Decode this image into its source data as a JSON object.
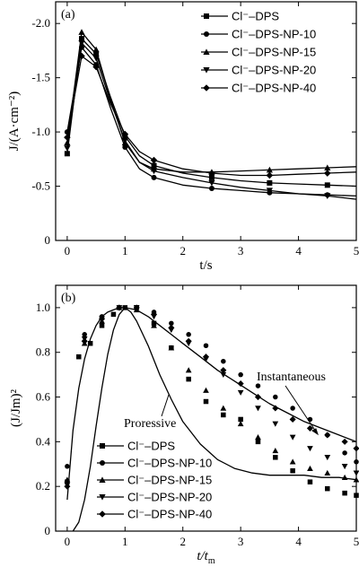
{
  "chart_data": [
    {
      "type": "line",
      "panel_label": "(a)",
      "xlabel": "t/s",
      "ylabel": "J/(A·cm⁻²)",
      "xlim": [
        -0.2,
        5
      ],
      "ylim": [
        0,
        -2.2
      ],
      "y_axis_reversed": true,
      "xticks": [
        "0",
        "1",
        "2",
        "3",
        "4",
        "5"
      ],
      "yticks": [
        "0",
        "-0.5",
        "-1.0",
        "-1.5",
        "-2.0"
      ],
      "legend_position": "top-right",
      "series": [
        {
          "name": "Cl⁻–DPS",
          "marker": "square",
          "x": [
            0,
            0.25,
            0.5,
            0.75,
            1.0,
            1.25,
            1.5,
            2,
            2.5,
            3,
            3.5,
            4,
            4.5,
            5
          ],
          "y": [
            -0.8,
            -1.86,
            -1.72,
            -1.32,
            -0.96,
            -0.78,
            -0.69,
            -0.62,
            -0.58,
            -0.55,
            -0.53,
            -0.52,
            -0.51,
            -0.5
          ]
        },
        {
          "name": "Cl⁻–DPS-NP-10",
          "marker": "circle",
          "x": [
            0,
            0.25,
            0.5,
            0.75,
            1.0,
            1.25,
            1.5,
            2,
            2.5,
            3,
            3.5,
            4,
            4.5,
            5
          ],
          "y": [
            -1.0,
            -1.78,
            -1.62,
            -1.22,
            -0.86,
            -0.66,
            -0.58,
            -0.51,
            -0.48,
            -0.46,
            -0.44,
            -0.43,
            -0.42,
            -0.41
          ]
        },
        {
          "name": "Cl⁻–DPS-NP-15",
          "marker": "triangle-up",
          "x": [
            0,
            0.25,
            0.5,
            0.75,
            1.0,
            1.25,
            1.5,
            2,
            2.5,
            3,
            3.5,
            4,
            4.5,
            5
          ],
          "y": [
            -0.9,
            -1.92,
            -1.76,
            -1.3,
            -0.9,
            -0.72,
            -0.66,
            -0.63,
            -0.63,
            -0.64,
            -0.65,
            -0.66,
            -0.67,
            -0.68
          ]
        },
        {
          "name": "Cl⁻–DPS-NP-20",
          "marker": "triangle-down",
          "x": [
            0,
            0.25,
            0.5,
            0.75,
            1.0,
            1.25,
            1.5,
            2,
            2.5,
            3,
            3.5,
            4,
            4.5,
            5
          ],
          "y": [
            -0.85,
            -1.82,
            -1.68,
            -1.28,
            -0.92,
            -0.72,
            -0.64,
            -0.58,
            -0.53,
            -0.49,
            -0.46,
            -0.43,
            -0.41,
            -0.38
          ]
        },
        {
          "name": "Cl⁻–DPS-NP-40",
          "marker": "diamond",
          "x": [
            0,
            0.25,
            0.5,
            0.75,
            1.0,
            1.25,
            1.5,
            2,
            2.5,
            3,
            3.5,
            4,
            4.5,
            5
          ],
          "y": [
            -0.95,
            -1.7,
            -1.6,
            -1.26,
            -0.98,
            -0.82,
            -0.74,
            -0.66,
            -0.62,
            -0.6,
            -0.6,
            -0.61,
            -0.62,
            -0.63
          ]
        }
      ]
    },
    {
      "type": "scatter",
      "panel_label": "(b)",
      "xlabel": "t/tm",
      "ylabel": "(J/Jm)²",
      "xlim": [
        -0.2,
        5
      ],
      "ylim": [
        0,
        1.1
      ],
      "xticks": [
        "0",
        "1",
        "2",
        "3",
        "4",
        "5"
      ],
      "yticks": [
        "0",
        "0.2",
        "0.4",
        "0.6",
        "0.8",
        "1.0"
      ],
      "legend_position": "bottom-left",
      "theory_curves": [
        {
          "name": "Instantaneous",
          "x": [
            0,
            0.1,
            0.2,
            0.3,
            0.4,
            0.5,
            0.6,
            0.7,
            0.8,
            0.9,
            1.0,
            1.2,
            1.4,
            1.6,
            1.8,
            2.0,
            2.3,
            2.6,
            2.9,
            3.2,
            3.5,
            3.8,
            4.1,
            4.4,
            4.7,
            5.0
          ],
          "y": [
            0.14,
            0.45,
            0.64,
            0.77,
            0.86,
            0.92,
            0.96,
            0.98,
            0.99,
            1.0,
            1.0,
            0.99,
            0.96,
            0.92,
            0.88,
            0.84,
            0.78,
            0.72,
            0.67,
            0.62,
            0.57,
            0.53,
            0.49,
            0.46,
            0.43,
            0.4
          ]
        },
        {
          "name": "Proressive",
          "x": [
            0.1,
            0.2,
            0.3,
            0.4,
            0.5,
            0.6,
            0.7,
            0.8,
            0.9,
            1.0,
            1.1,
            1.2,
            1.4,
            1.6,
            1.8,
            2.0,
            2.3,
            2.6,
            2.9,
            3.2,
            3.5,
            3.8,
            4.1,
            4.4,
            4.7,
            5.0
          ],
          "y": [
            0.0,
            0.04,
            0.14,
            0.29,
            0.47,
            0.64,
            0.79,
            0.9,
            0.97,
            1.0,
            0.98,
            0.94,
            0.83,
            0.7,
            0.59,
            0.49,
            0.39,
            0.32,
            0.28,
            0.26,
            0.25,
            0.25,
            0.25,
            0.24,
            0.24,
            0.23
          ]
        }
      ],
      "annotations": [
        "Instantaneous",
        "Proressive"
      ],
      "series": [
        {
          "name": "Cl⁻–DPS",
          "marker": "square",
          "x": [
            0,
            0.2,
            0.4,
            0.6,
            0.8,
            1.0,
            1.2,
            1.5,
            1.8,
            2.1,
            2.4,
            2.7,
            3.0,
            3.3,
            3.6,
            3.9,
            4.2,
            4.5,
            4.8,
            5.0
          ],
          "y": [
            0.22,
            0.78,
            0.84,
            0.92,
            0.97,
            1.0,
            1.0,
            0.93,
            0.82,
            0.68,
            0.58,
            0.52,
            0.5,
            0.4,
            0.33,
            0.27,
            0.22,
            0.19,
            0.17,
            0.16
          ]
        },
        {
          "name": "Cl⁻–DPS-NP-10",
          "marker": "circle",
          "x": [
            0,
            0.3,
            0.6,
            0.9,
            1.2,
            1.5,
            1.8,
            2.1,
            2.4,
            2.7,
            3.0,
            3.3,
            3.6,
            3.9,
            4.2,
            4.5,
            4.8,
            5.0
          ],
          "y": [
            0.29,
            0.88,
            0.96,
            1.0,
            1.0,
            0.98,
            0.93,
            0.88,
            0.83,
            0.76,
            0.7,
            0.65,
            0.6,
            0.55,
            0.5,
            0.43,
            0.35,
            0.31
          ]
        },
        {
          "name": "Cl⁻–DPS-NP-15",
          "marker": "triangle-up",
          "x": [
            0,
            0.3,
            0.6,
            0.9,
            1.2,
            1.5,
            1.8,
            2.1,
            2.4,
            2.7,
            3.0,
            3.3,
            3.6,
            3.9,
            4.2,
            4.5,
            4.8,
            5.0
          ],
          "y": [
            0.23,
            0.84,
            0.94,
            1.0,
            0.99,
            0.92,
            0.82,
            0.72,
            0.63,
            0.55,
            0.48,
            0.42,
            0.36,
            0.31,
            0.28,
            0.26,
            0.24,
            0.23
          ]
        },
        {
          "name": "Cl⁻–DPS-NP-20",
          "marker": "triangle-down",
          "x": [
            0,
            0.3,
            0.6,
            0.9,
            1.2,
            1.5,
            1.8,
            2.1,
            2.4,
            2.7,
            3.0,
            3.3,
            3.6,
            3.9,
            4.2,
            4.5,
            4.8,
            5.0
          ],
          "y": [
            0.21,
            0.86,
            0.95,
            1.0,
            1.0,
            0.96,
            0.9,
            0.84,
            0.77,
            0.7,
            0.62,
            0.55,
            0.48,
            0.42,
            0.37,
            0.33,
            0.29,
            0.26
          ]
        },
        {
          "name": "Cl⁻–DPS-NP-40",
          "marker": "diamond",
          "x": [
            0,
            0.3,
            0.6,
            0.9,
            1.2,
            1.5,
            1.8,
            2.1,
            2.4,
            2.7,
            3.0,
            3.3,
            3.6,
            3.9,
            4.2,
            4.5,
            4.8,
            5.0
          ],
          "y": [
            0.2,
            0.85,
            0.95,
            1.0,
            1.0,
            0.97,
            0.91,
            0.85,
            0.78,
            0.72,
            0.66,
            0.6,
            0.55,
            0.5,
            0.46,
            0.43,
            0.4,
            0.37
          ]
        }
      ]
    }
  ]
}
